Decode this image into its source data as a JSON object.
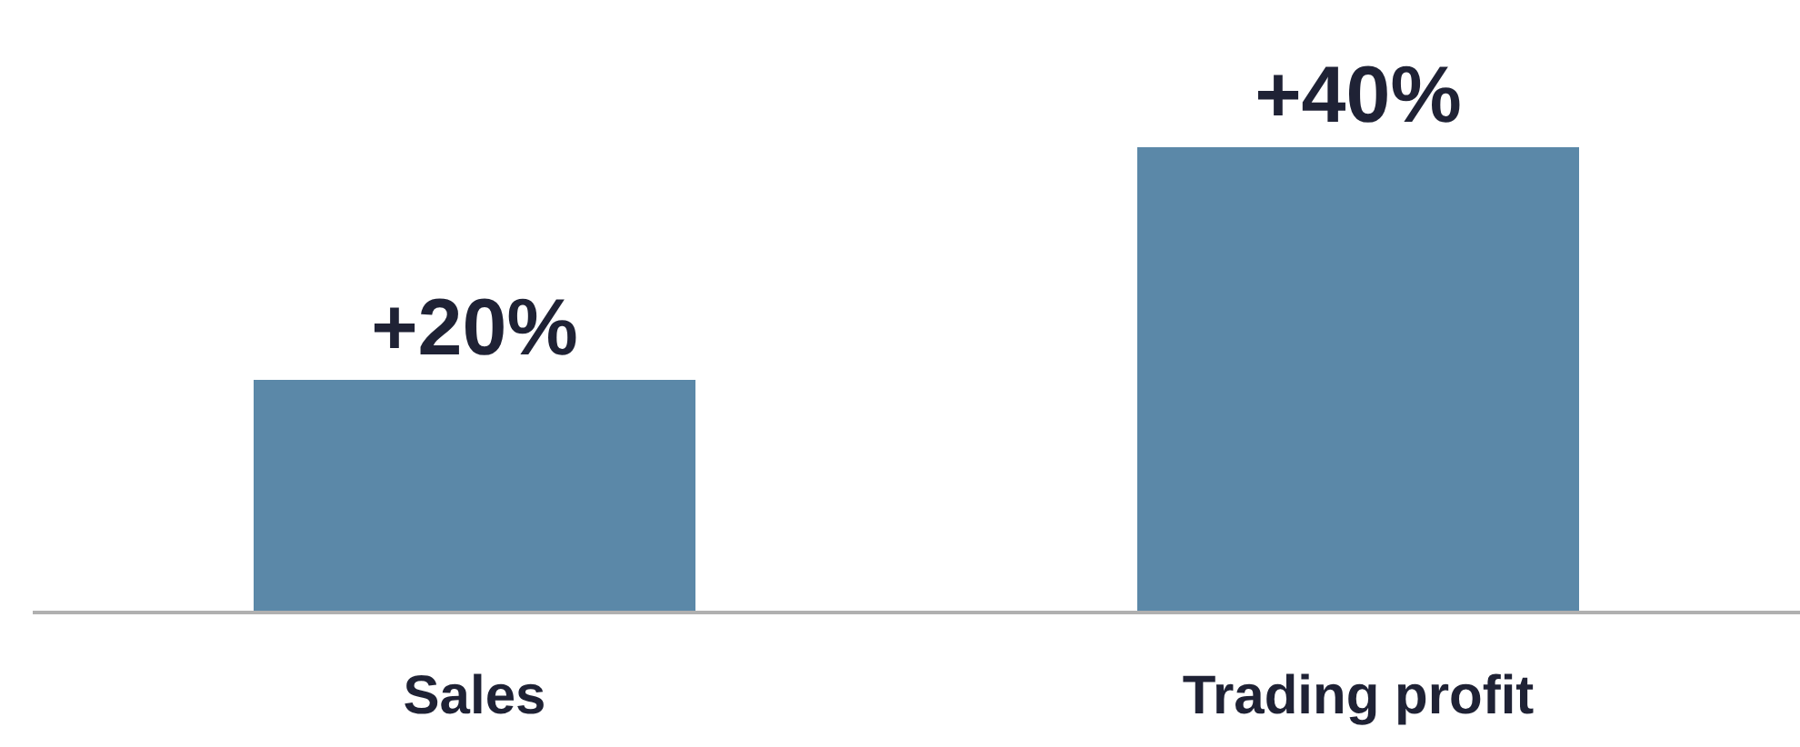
{
  "chart_data": {
    "type": "bar",
    "categories": [
      "Sales",
      "Trading profit"
    ],
    "values": [
      20,
      40
    ],
    "value_labels": [
      "+20%",
      "+40%"
    ],
    "color": "#5b88a8",
    "grid": false,
    "legend": false
  }
}
